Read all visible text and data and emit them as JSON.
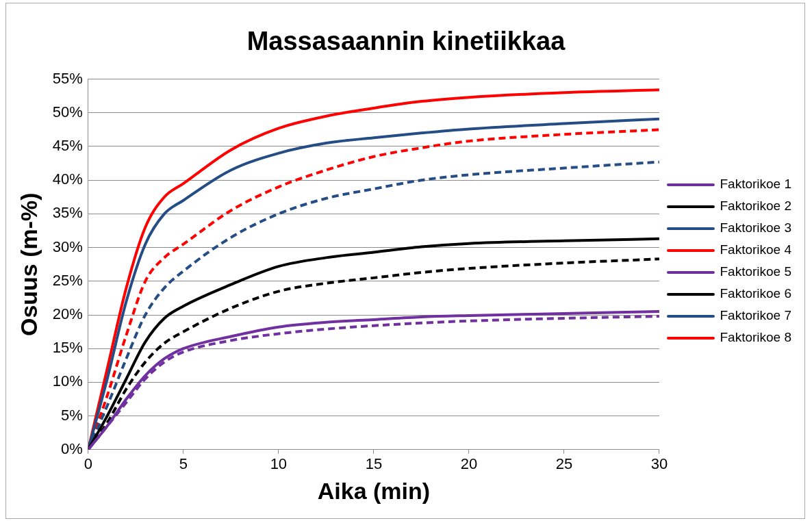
{
  "chart_data": {
    "type": "line",
    "title": "Massasaannin kinetiikkaa",
    "xlabel": "Aika (min)",
    "ylabel": "Osuus (m-%)",
    "x": [
      0,
      1,
      2,
      3,
      4,
      5,
      7.5,
      10,
      12.5,
      15,
      17.5,
      20,
      25,
      30
    ],
    "xlim": [
      0,
      30
    ],
    "xticks": [
      0,
      5,
      10,
      15,
      20,
      25,
      30
    ],
    "ylim": [
      0,
      55
    ],
    "yticks": [
      {
        "value": 0,
        "label": "0%"
      },
      {
        "value": 5,
        "label": "5%"
      },
      {
        "value": 10,
        "label": "10%"
      },
      {
        "value": 15,
        "label": "15%"
      },
      {
        "value": 20,
        "label": "20%"
      },
      {
        "value": 25,
        "label": "25%"
      },
      {
        "value": 30,
        "label": "30%"
      },
      {
        "value": 35,
        "label": "35%"
      },
      {
        "value": 40,
        "label": "40%"
      },
      {
        "value": 45,
        "label": "45%"
      },
      {
        "value": 50,
        "label": "50%"
      },
      {
        "value": 55,
        "label": "55%"
      }
    ],
    "grid": "y",
    "legend": "right",
    "marker": "none",
    "series": [
      {
        "name": "Faktorikoe 1",
        "color": "#7030a0",
        "line_style": "solid",
        "values": [
          0,
          3.5,
          7.5,
          11,
          13.5,
          15,
          16.8,
          18.2,
          18.9,
          19.3,
          19.7,
          19.9,
          20.2,
          20.5
        ]
      },
      {
        "name": "Faktorikoe 2",
        "color": "#000000",
        "line_style": "solid",
        "values": [
          0,
          5,
          10.5,
          16,
          19.5,
          21.3,
          24.5,
          27.2,
          28.5,
          29.3,
          30.1,
          30.6,
          31,
          31.3
        ]
      },
      {
        "name": "Faktorikoe 3",
        "color": "#254d85",
        "line_style": "solid",
        "values": [
          0,
          10.5,
          22,
          30.5,
          35,
          37,
          41.5,
          44,
          45.5,
          46.3,
          47,
          47.6,
          48.4,
          49.1
        ]
      },
      {
        "name": "Faktorikoe 4",
        "color": "#ff0000",
        "line_style": "solid",
        "values": [
          0,
          12,
          24,
          33,
          37.5,
          39.5,
          44.5,
          47.7,
          49.5,
          50.7,
          51.7,
          52.3,
          53,
          53.4
        ]
      },
      {
        "name": "Faktorikoe 5",
        "color": "#7030a0",
        "line_style": "dashed",
        "values": [
          0,
          3.5,
          7,
          10.5,
          13,
          14.5,
          16.2,
          17.2,
          17.9,
          18.4,
          18.8,
          19.1,
          19.5,
          19.8
        ]
      },
      {
        "name": "Faktorikoe 6",
        "color": "#000000",
        "line_style": "dashed",
        "values": [
          0,
          4,
          9,
          13,
          15.8,
          17.5,
          21,
          23.5,
          24.7,
          25.5,
          26.3,
          26.9,
          27.7,
          28.3
        ]
      },
      {
        "name": "Faktorikoe 7",
        "color": "#254d85",
        "line_style": "dashed",
        "values": [
          0,
          6.5,
          13.5,
          20,
          24,
          26.5,
          31.5,
          35,
          37.3,
          38.7,
          40,
          40.8,
          41.8,
          42.7
        ]
      },
      {
        "name": "Faktorikoe 8",
        "color": "#ff0000",
        "line_style": "dashed",
        "values": [
          0,
          8,
          17,
          25,
          28.5,
          30.5,
          35.5,
          39,
          41.5,
          43.5,
          44.8,
          45.8,
          46.8,
          47.5
        ]
      }
    ]
  }
}
